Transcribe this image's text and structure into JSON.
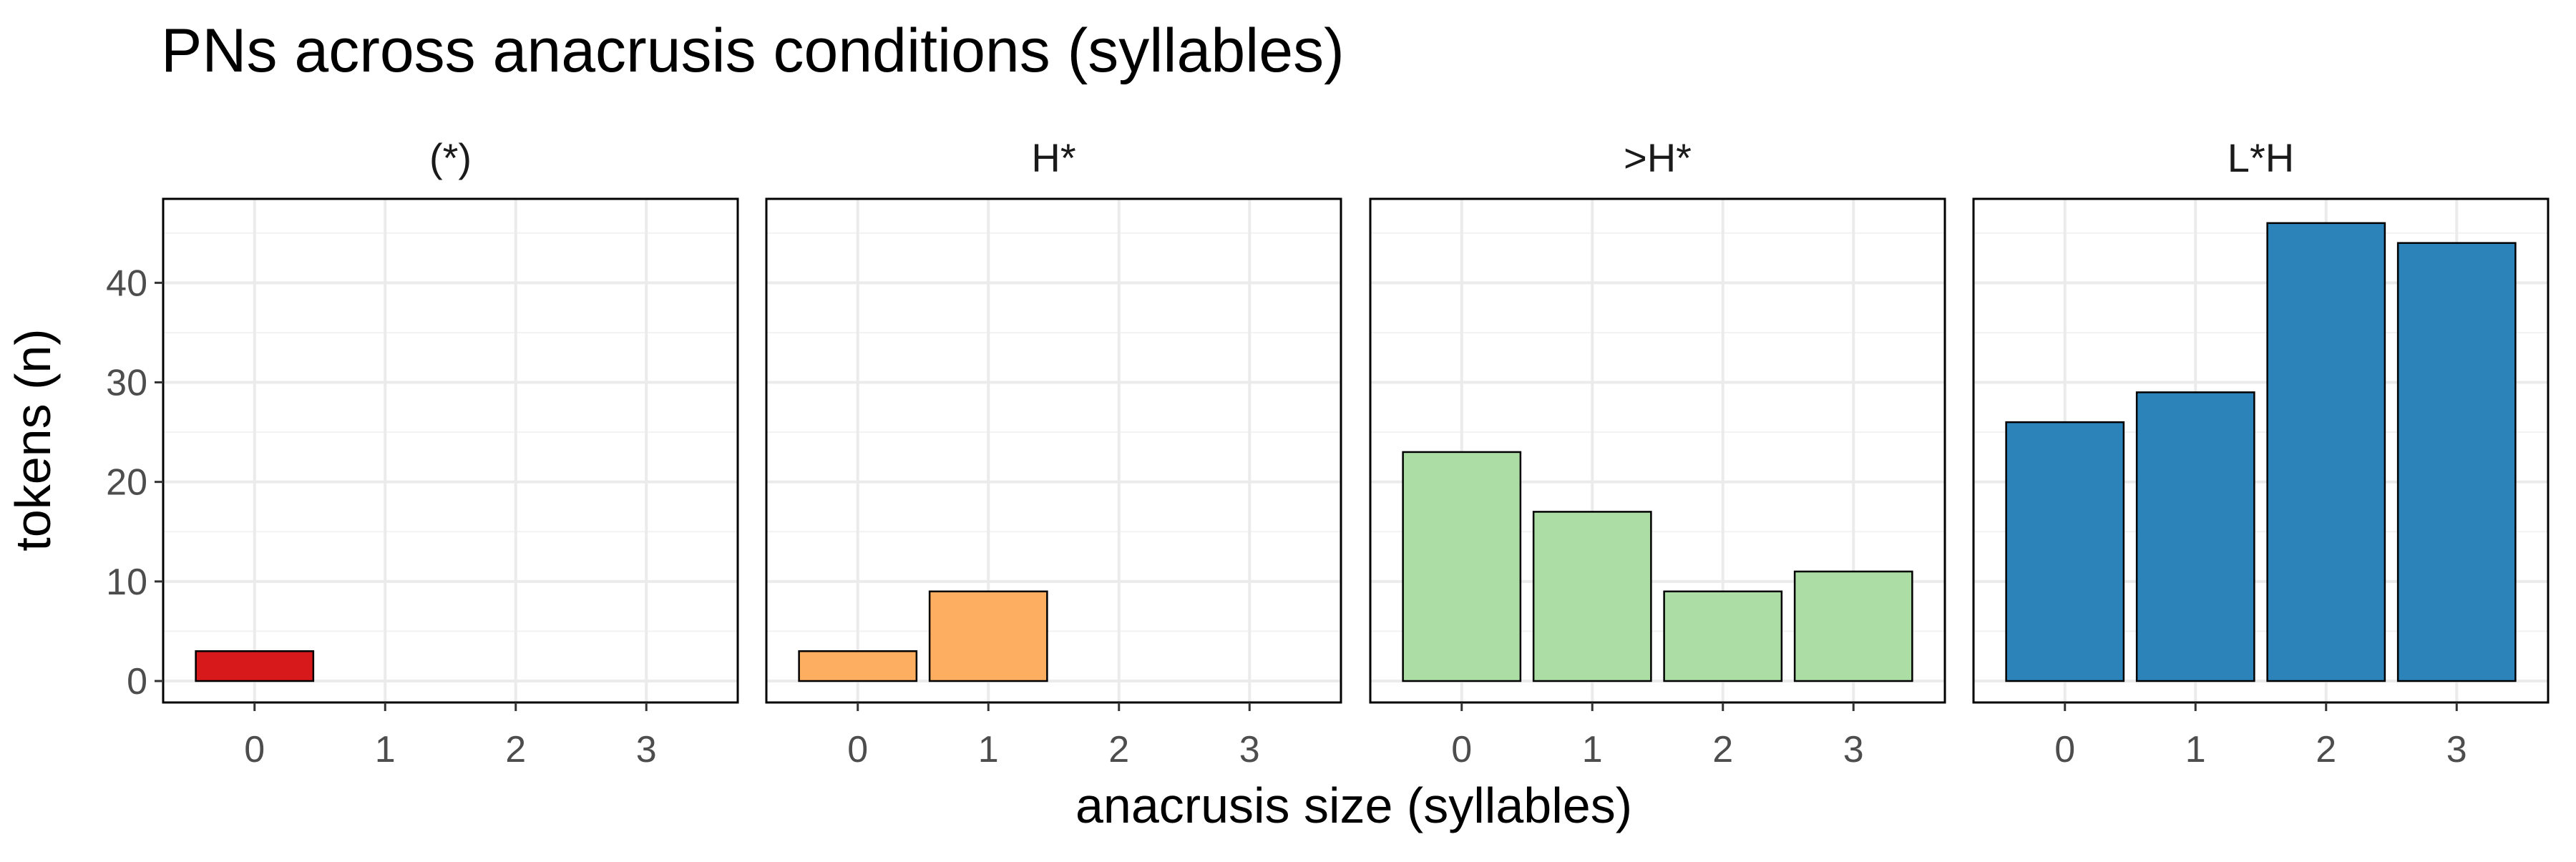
{
  "chart_data": {
    "type": "bar",
    "title": "PNs across anacrusis conditions (syllables)",
    "xlabel": "anacrusis size (syllables)",
    "ylabel": "tokens (n)",
    "categories": [
      "0",
      "1",
      "2",
      "3"
    ],
    "ylim": [
      0,
      48
    ],
    "yticks": [
      0,
      10,
      20,
      30,
      40
    ],
    "grid": true,
    "legend": "none",
    "facets": [
      {
        "label": "(*)",
        "color": "#d7191c",
        "values": [
          3,
          0,
          0,
          0
        ]
      },
      {
        "label": "H*",
        "color": "#fdae61",
        "values": [
          3,
          9,
          0,
          0
        ]
      },
      {
        "label": ">H*",
        "color": "#abdda4",
        "values": [
          23,
          17,
          9,
          11
        ]
      },
      {
        "label": "L*H",
        "color": "#2b83ba",
        "values": [
          26,
          29,
          46,
          44
        ]
      }
    ]
  }
}
